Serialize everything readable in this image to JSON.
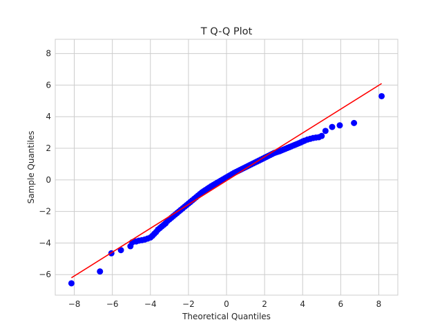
{
  "chart_data": {
    "type": "scatter",
    "title": "T Q-Q Plot",
    "xlabel": "Theoretical Quantiles",
    "ylabel": "Sample Quantiles",
    "xlim": [
      -9.0,
      9.0
    ],
    "ylim": [
      -7.3,
      8.9
    ],
    "x_ticks": [
      -8,
      -6,
      -4,
      -2,
      0,
      2,
      4,
      6,
      8
    ],
    "y_ticks": [
      -6,
      -4,
      -2,
      0,
      2,
      4,
      6,
      8
    ],
    "x_tick_labels": [
      "−8",
      "−6",
      "−4",
      "−2",
      "0",
      "2",
      "4",
      "6",
      "8"
    ],
    "y_tick_labels": [
      "−6",
      "−4",
      "−2",
      "0",
      "2",
      "4",
      "6",
      "8"
    ],
    "grid": true,
    "series": [
      {
        "kind": "points",
        "color": "#0000ff",
        "x": [
          -8.15,
          -6.65,
          -6.05,
          -5.55,
          -5.05,
          -4.95,
          -4.75,
          -4.6,
          -4.45,
          -4.3,
          -4.15,
          -4.0,
          -3.9,
          -3.8,
          -3.7,
          -3.6,
          -3.5,
          -3.4,
          -3.3,
          -3.2,
          -3.1,
          -3.0,
          -2.9,
          -2.8,
          -2.7,
          -2.6,
          -2.5,
          -2.4,
          -2.3,
          -2.2,
          -2.1,
          -2.0,
          -1.9,
          -1.8,
          -1.7,
          -1.6,
          -1.5,
          -1.4,
          -1.3,
          -1.2,
          -1.1,
          -1.0,
          -0.9,
          -0.8,
          -0.7,
          -0.6,
          -0.5,
          -0.4,
          -0.3,
          -0.2,
          -0.1,
          0.0,
          0.1,
          0.2,
          0.3,
          0.4,
          0.5,
          0.6,
          0.7,
          0.8,
          0.9,
          1.0,
          1.1,
          1.2,
          1.3,
          1.4,
          1.5,
          1.6,
          1.7,
          1.8,
          1.9,
          2.0,
          2.1,
          2.2,
          2.3,
          2.4,
          2.5,
          2.6,
          2.7,
          2.8,
          2.9,
          3.0,
          3.1,
          3.2,
          3.3,
          3.4,
          3.5,
          3.6,
          3.7,
          3.8,
          3.9,
          4.0,
          4.1,
          4.25,
          4.4,
          4.55,
          4.7,
          4.85,
          5.0,
          5.2,
          5.55,
          5.95,
          6.7,
          8.15
        ],
        "y": [
          -6.55,
          -5.8,
          -4.65,
          -4.45,
          -4.2,
          -3.95,
          -3.9,
          -3.85,
          -3.82,
          -3.78,
          -3.72,
          -3.65,
          -3.55,
          -3.42,
          -3.3,
          -3.15,
          -3.05,
          -2.95,
          -2.85,
          -2.75,
          -2.6,
          -2.5,
          -2.4,
          -2.3,
          -2.2,
          -2.1,
          -2.0,
          -1.9,
          -1.8,
          -1.7,
          -1.6,
          -1.5,
          -1.4,
          -1.3,
          -1.2,
          -1.1,
          -1.0,
          -0.9,
          -0.8,
          -0.72,
          -0.64,
          -0.56,
          -0.48,
          -0.4,
          -0.33,
          -0.26,
          -0.19,
          -0.12,
          -0.05,
          0.02,
          0.09,
          0.16,
          0.23,
          0.3,
          0.37,
          0.44,
          0.5,
          0.56,
          0.62,
          0.68,
          0.74,
          0.8,
          0.86,
          0.92,
          0.98,
          1.04,
          1.1,
          1.16,
          1.22,
          1.28,
          1.34,
          1.4,
          1.46,
          1.52,
          1.58,
          1.64,
          1.7,
          1.74,
          1.78,
          1.82,
          1.87,
          1.92,
          1.97,
          2.02,
          2.07,
          2.12,
          2.17,
          2.22,
          2.27,
          2.32,
          2.37,
          2.43,
          2.48,
          2.55,
          2.6,
          2.65,
          2.68,
          2.7,
          2.78,
          3.1,
          3.35,
          3.45,
          3.6,
          5.3
        ]
      },
      {
        "kind": "reference-line",
        "color": "#ff0000",
        "x": [
          -8.15,
          8.15
        ],
        "y": [
          -6.2,
          6.1
        ]
      }
    ]
  }
}
